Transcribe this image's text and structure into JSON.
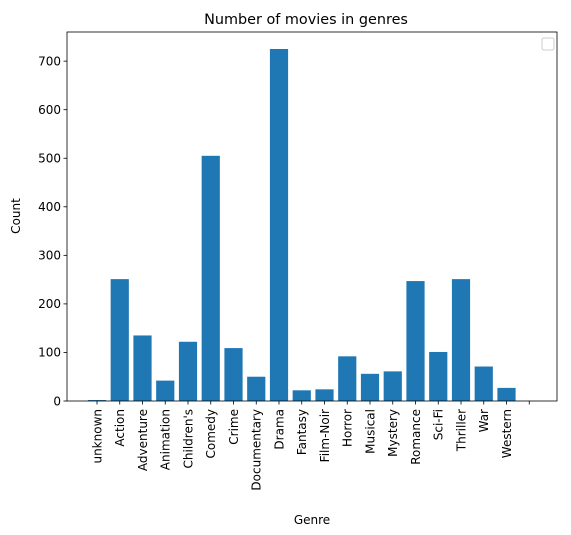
{
  "chart_data": {
    "type": "bar",
    "title": "Number of movies in genres",
    "xlabel": "Genre",
    "ylabel": "Count",
    "ylim": [
      0,
      760
    ],
    "yticks": [
      0,
      100,
      200,
      300,
      400,
      500,
      600,
      700
    ],
    "categories": [
      "unknown",
      "Action",
      "Adventure",
      "Animation",
      "Children's",
      "Comedy",
      "Crime",
      "Documentary",
      "Drama",
      "Fantasy",
      "Film-Noir",
      "Horror",
      "Musical",
      "Mystery",
      "Romance",
      "Sci-Fi",
      "Thriller",
      "War",
      "Western",
      ""
    ],
    "values": [
      2,
      251,
      135,
      42,
      122,
      505,
      109,
      50,
      725,
      22,
      24,
      92,
      56,
      61,
      247,
      101,
      251,
      71,
      27,
      0
    ],
    "bar_color": "#1f77b4",
    "grid": false,
    "legend": "empty box, top-right"
  }
}
